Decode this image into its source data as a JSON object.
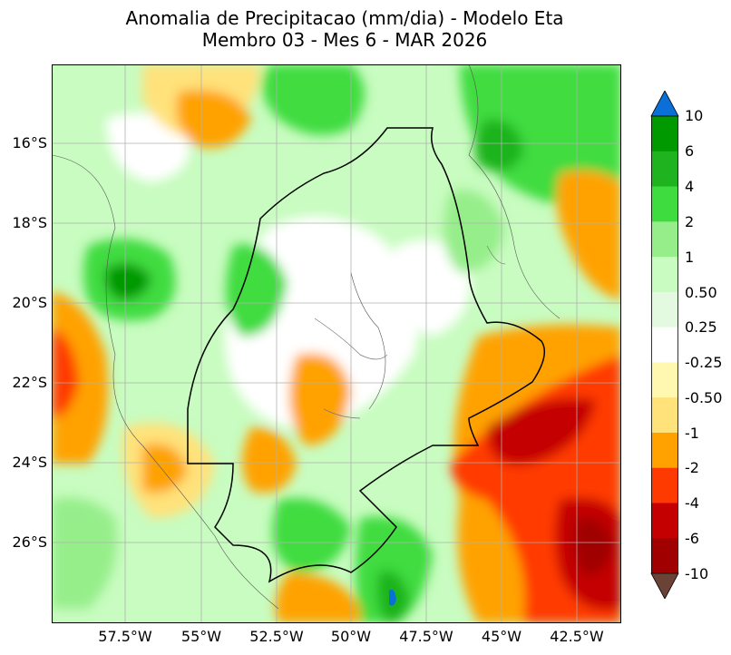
{
  "title": {
    "line1": "Anomalia de Precipitacao (mm/dia) - Modelo Eta",
    "line2": "Membro 03 - Mes 6 - MAR 2026"
  },
  "axes": {
    "lat_labels": [
      "16°S",
      "18°S",
      "20°S",
      "22°S",
      "24°S",
      "26°S"
    ],
    "lon_labels": [
      "57.5°W",
      "55°W",
      "52.5°W",
      "50°W",
      "47.5°W",
      "45°W",
      "42.5°W"
    ]
  },
  "colorbar": {
    "labels": [
      "10",
      "6",
      "4",
      "2",
      "1",
      "0.50",
      "0.25",
      "-0.25",
      "-0.50",
      "-1",
      "-2",
      "-4",
      "-6",
      "-10"
    ],
    "colors": [
      "#0a6fd6",
      "#009a00",
      "#1fb41f",
      "#3fdc3f",
      "#96ee8a",
      "#c8fcc0",
      "#e4fae0",
      "#ffffff",
      "#fff8b0",
      "#ffe27a",
      "#ffa200",
      "#ff3a00",
      "#c40000",
      "#a00000",
      "#6b4236"
    ]
  },
  "map": {
    "background_color": "#c8fcc0",
    "grid_color": "#b0b0b0",
    "state_border_color": "#000000"
  }
}
